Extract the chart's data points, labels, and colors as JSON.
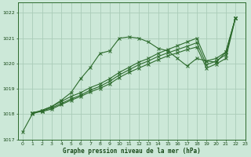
{
  "title": "Graphe pression niveau de la mer (hPa)",
  "bg_color": "#cce8d8",
  "grid_color": "#aaccb8",
  "line_color": "#2d6b2d",
  "text_color": "#1a4a1a",
  "xlim": [
    -0.5,
    23
  ],
  "ylim": [
    1017,
    1022.4
  ],
  "xticks": [
    0,
    1,
    2,
    3,
    4,
    5,
    6,
    7,
    8,
    9,
    10,
    11,
    12,
    13,
    14,
    15,
    16,
    17,
    18,
    19,
    20,
    21,
    22,
    23
  ],
  "yticks": [
    1017,
    1018,
    1019,
    1020,
    1021,
    1022
  ],
  "lines": [
    [
      1017.3,
      1018.0,
      1018.15,
      1018.3,
      1018.55,
      1018.85,
      1019.4,
      1019.85,
      1020.4,
      1020.5,
      1021.0,
      1021.05,
      1021.0,
      1020.85,
      1020.6,
      1020.5,
      1020.2,
      1019.9,
      1020.2,
      1020.1,
      1020.05,
      1020.45,
      1021.8,
      null
    ],
    [
      null,
      1018.05,
      1018.15,
      1018.3,
      1018.5,
      1018.7,
      1018.85,
      1019.05,
      1019.2,
      1019.4,
      1019.65,
      1019.85,
      1020.05,
      1020.2,
      1020.4,
      1020.55,
      1020.7,
      1020.85,
      1021.0,
      1020.1,
      1020.2,
      1020.45,
      1021.8,
      null
    ],
    [
      null,
      1018.05,
      1018.12,
      1018.25,
      1018.42,
      1018.6,
      1018.75,
      1018.95,
      1019.1,
      1019.3,
      1019.55,
      1019.75,
      1019.95,
      1020.1,
      1020.28,
      1020.42,
      1020.55,
      1020.68,
      1020.82,
      1019.95,
      1020.1,
      1020.35,
      1021.8,
      null
    ],
    [
      null,
      1018.05,
      1018.1,
      1018.2,
      1018.38,
      1018.55,
      1018.7,
      1018.88,
      1019.02,
      1019.2,
      1019.45,
      1019.65,
      1019.82,
      1019.98,
      1020.15,
      1020.3,
      1020.42,
      1020.55,
      1020.65,
      1019.82,
      1019.98,
      1020.2,
      1021.8,
      null
    ]
  ]
}
